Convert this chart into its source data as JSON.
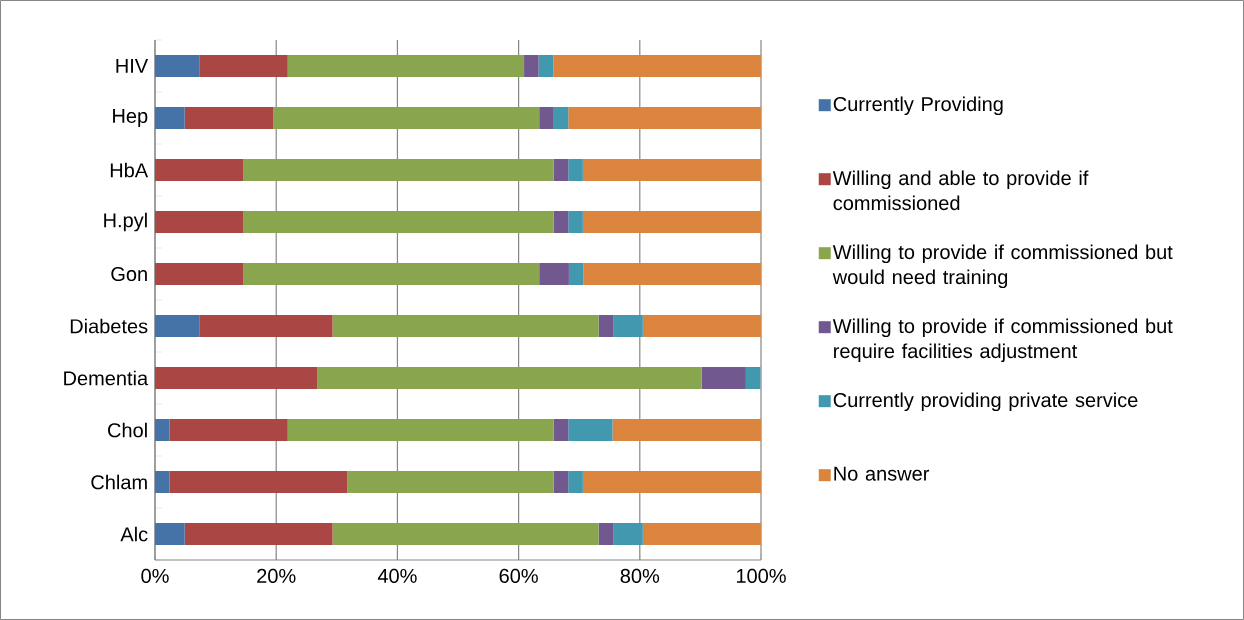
{
  "chart_data": {
    "type": "bar",
    "orientation": "horizontal",
    "stacked": true,
    "categories": [
      "HIV",
      "Hep",
      "HbA",
      "H.pyl",
      "Gon",
      "Diabetes",
      "Dementia",
      "Chol",
      "Chlam",
      "Alc"
    ],
    "series": [
      {
        "name": "Currently Providing",
        "color": "#4572a7",
        "values": [
          7.3,
          4.9,
          0,
          0,
          0,
          7.3,
          0,
          2.4,
          2.4,
          4.9
        ]
      },
      {
        "name": "Willing and able to provide if commissioned",
        "color": "#aa4643",
        "values": [
          14.6,
          14.6,
          14.6,
          14.6,
          14.6,
          22.0,
          26.8,
          19.5,
          29.3,
          24.4
        ]
      },
      {
        "name": "Willing to provide if commissioned but would need training",
        "color": "#89a54e",
        "values": [
          39.0,
          43.9,
          51.2,
          51.2,
          48.8,
          43.9,
          63.4,
          43.9,
          34.1,
          43.9
        ]
      },
      {
        "name": "Willing to provide if commissioned but require facilities adjustment",
        "color": "#71588f",
        "values": [
          2.4,
          2.4,
          2.4,
          2.4,
          4.9,
          2.4,
          7.3,
          2.4,
          2.4,
          2.4
        ]
      },
      {
        "name": "Currently providing private service",
        "color": "#4198af",
        "values": [
          2.4,
          2.4,
          2.4,
          2.4,
          2.4,
          4.9,
          2.4,
          7.3,
          2.4,
          4.9
        ]
      },
      {
        "name": "No answer",
        "color": "#db843d",
        "values": [
          34.3,
          31.8,
          29.4,
          29.4,
          29.3,
          19.5,
          0,
          24.5,
          29.4,
          19.5
        ]
      }
    ],
    "xlim": [
      0,
      100
    ],
    "xticks": [
      {
        "value": 0,
        "label": "0%"
      },
      {
        "value": 20,
        "label": "20%"
      },
      {
        "value": 40,
        "label": "40%"
      },
      {
        "value": 60,
        "label": "60%"
      },
      {
        "value": 80,
        "label": "80%"
      },
      {
        "value": 100,
        "label": "100%"
      }
    ],
    "grid": "x",
    "legend": "right"
  }
}
